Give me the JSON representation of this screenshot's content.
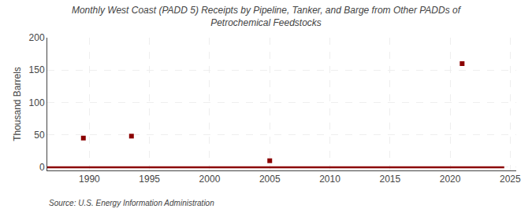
{
  "chart_data": {
    "type": "scatter",
    "title": "Monthly West Coast (PADD 5) Receipts by Pipeline, Tanker, and Barge from Other PADDs of\nPetrochemical Feedstocks",
    "ylabel": "Thousand Barrels",
    "annotations": [
      "Source: U.S. Energy Information Administration"
    ],
    "series": [
      {
        "type": "scatter",
        "marker": "square",
        "color": "#8b0000",
        "x": [
          1989.5,
          1993.5,
          2005.0,
          2021.0
        ],
        "values": [
          45,
          48,
          10,
          160
        ]
      },
      {
        "type": "line",
        "line_style": "solid",
        "color": "#8b0000",
        "x": [
          1986.5,
          2024.5
        ],
        "values": [
          0,
          0
        ]
      }
    ],
    "xlim": [
      1986.5,
      2025.5
    ],
    "ylim": [
      -5,
      200
    ],
    "xticks": [
      1990,
      1995,
      2000,
      2005,
      2010,
      2015,
      2020,
      2025
    ],
    "yticks": [
      0,
      50,
      100,
      150,
      200
    ],
    "grid": true
  }
}
